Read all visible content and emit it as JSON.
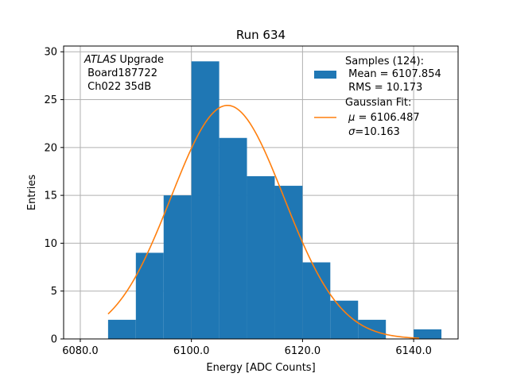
{
  "chart_data": {
    "type": "bar",
    "title": "Run 634",
    "xlabel": "Energy [ADC Counts]",
    "ylabel": "Entries",
    "xlim": [
      6077.0,
      6148.0
    ],
    "ylim": [
      0,
      30.6
    ],
    "xticks": [
      6080.0,
      6100.0,
      6120.0,
      6140.0
    ],
    "xtick_labels": [
      "6080.0",
      "6100.0",
      "6120.0",
      "6140.0"
    ],
    "yticks": [
      0,
      5,
      10,
      15,
      20,
      25,
      30
    ],
    "ytick_labels": [
      "0",
      "5",
      "10",
      "15",
      "20",
      "25",
      "30"
    ],
    "grid": true,
    "bin_edges": [
      6085,
      6090,
      6095,
      6100,
      6105,
      6110,
      6115,
      6120,
      6125,
      6130,
      6135,
      6140,
      6145
    ],
    "counts": [
      2,
      9,
      15,
      29,
      21,
      17,
      16,
      8,
      4,
      2,
      0,
      1
    ],
    "fit": {
      "type": "gaussian",
      "mu": 6106.487,
      "sigma": 10.163,
      "x_range": [
        6085,
        6141
      ],
      "amplitude": 24.4
    },
    "colors": {
      "bars": "#1f77b4",
      "fit": "#ff7f0e",
      "grid": "#b0b0b0"
    },
    "annotation": {
      "line1_italic": "ATLAS",
      "line1_rest": " Upgrade",
      "line2": " Board187722",
      "line3": " Ch022 35dB"
    },
    "legend": {
      "placement": "top-right",
      "samples_lines": [
        "Samples (124):",
        " Mean = 6107.854",
        " RMS = 10.173"
      ],
      "fit_line1": "Gaussian Fit:",
      "fit_mu_symbol": "μ",
      "fit_mu_value": " = 6106.487",
      "fit_sigma_symbol": "σ",
      "fit_sigma_value": "=10.163"
    }
  }
}
